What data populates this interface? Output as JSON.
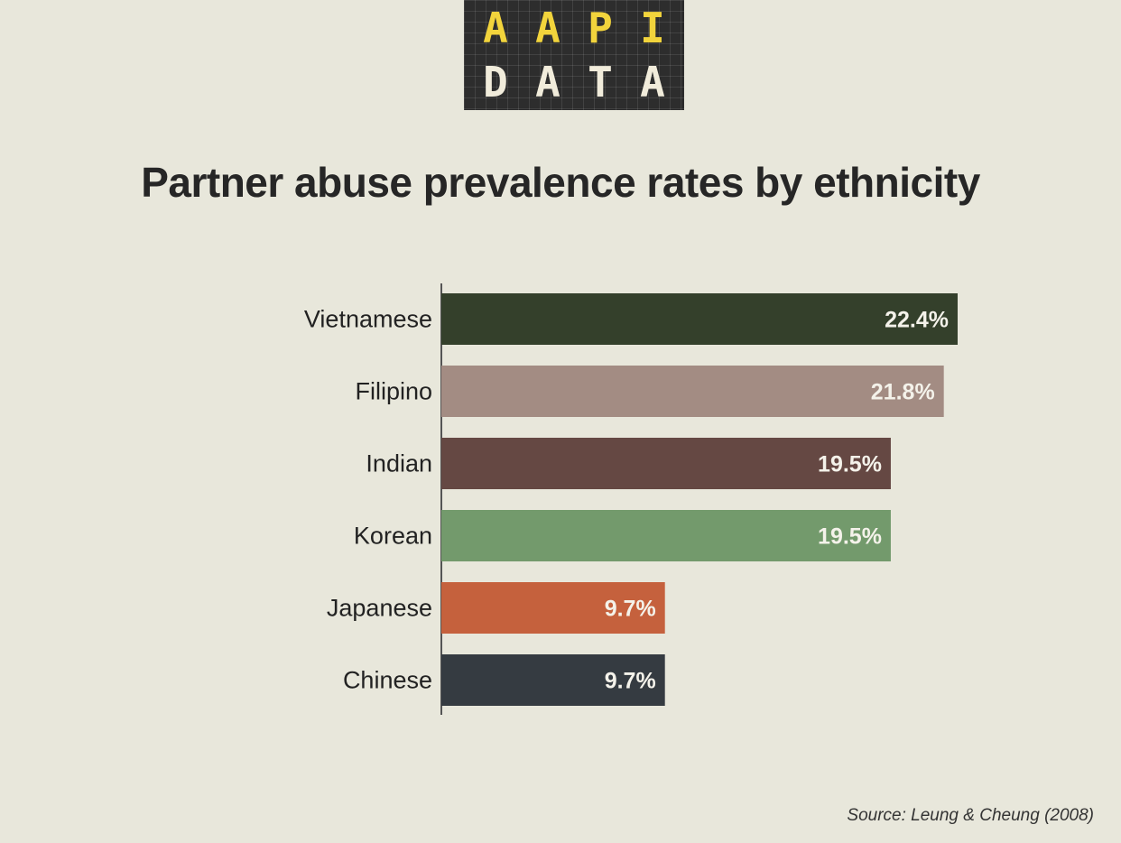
{
  "logo": {
    "top_row": [
      "A",
      "A",
      "P",
      "I"
    ],
    "bottom_row": [
      "D",
      "A",
      "T",
      "A"
    ]
  },
  "title": "Partner abuse prevalence rates by ethnicity",
  "source": "Source: Leung & Cheung (2008)",
  "chart_data": {
    "type": "bar",
    "orientation": "horizontal",
    "title": "Partner abuse prevalence rates by ethnicity",
    "categories": [
      "Vietnamese",
      "Filipino",
      "Indian",
      "Korean",
      "Japanese",
      "Chinese"
    ],
    "values": [
      22.4,
      21.8,
      19.5,
      19.5,
      9.7,
      9.7
    ],
    "value_labels": [
      "22.4%",
      "21.8%",
      "19.5%",
      "19.5%",
      "9.7%",
      "9.7%"
    ],
    "colors": [
      "#34402b",
      "#a38c83",
      "#654843",
      "#739a6c",
      "#c5613d",
      "#353b41"
    ],
    "xlim": [
      0,
      22.4
    ],
    "grid": false,
    "legend": "none"
  }
}
